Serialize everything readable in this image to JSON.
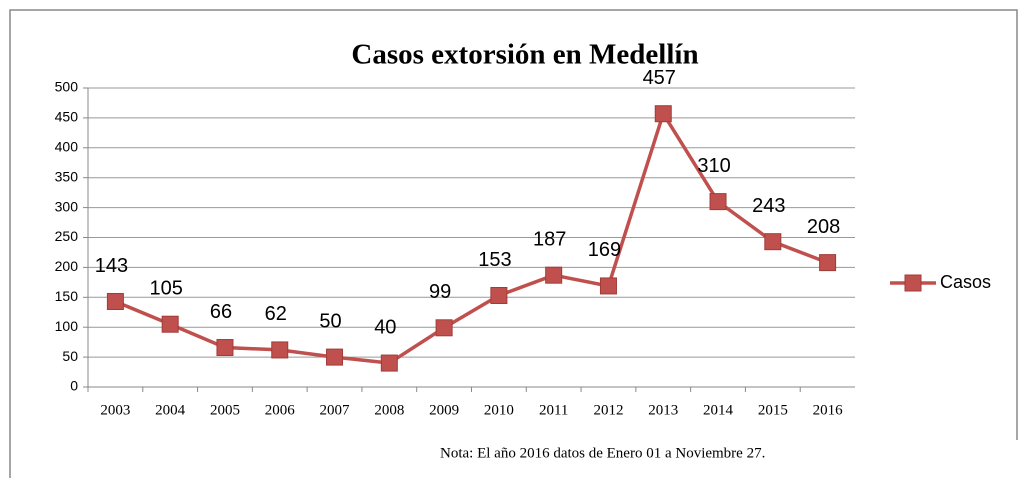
{
  "chart_data": {
    "type": "line",
    "title": "Casos extorsión en Medellín",
    "categories": [
      "2003",
      "2004",
      "2005",
      "2006",
      "2007",
      "2008",
      "2009",
      "2010",
      "2011",
      "2012",
      "2013",
      "2014",
      "2015",
      "2016"
    ],
    "series": [
      {
        "name": "Casos",
        "color": "#c0504d",
        "values": [
          143,
          105,
          66,
          62,
          50,
          40,
          99,
          153,
          187,
          169,
          457,
          310,
          243,
          208
        ]
      }
    ],
    "ylim": [
      0,
      500
    ],
    "yticks": [
      0,
      50,
      100,
      150,
      200,
      250,
      300,
      350,
      400,
      450,
      500
    ],
    "grid": true,
    "legend": "right",
    "annotation": "Nota: El año 2016 datos de Enero 01  a Noviembre 27."
  }
}
